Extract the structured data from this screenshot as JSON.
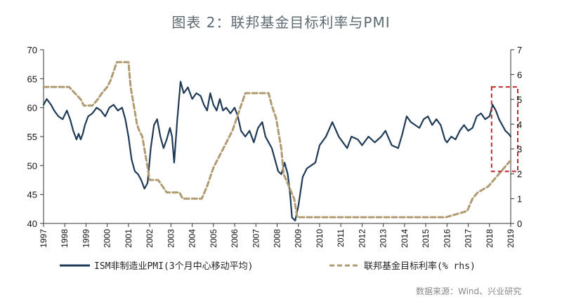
{
  "title": "图表 2：联邦基金目标利率与PMI",
  "source": "数据来源：Wind、兴业研究",
  "colors": {
    "pmi": "#1f3a56",
    "fed": "#b09b70",
    "box": "#c0282d",
    "axis": "#333333"
  },
  "chart_data": {
    "type": "line",
    "title": "图表 2：联邦基金目标利率与PMI",
    "left_axis": {
      "min": 40,
      "max": 70,
      "ticks": [
        40,
        45,
        50,
        55,
        60,
        65,
        70
      ],
      "labels": [
        "40",
        "45",
        "50",
        "55",
        "60",
        "65",
        "70"
      ]
    },
    "right_axis": {
      "min": 0,
      "max": 7,
      "ticks": [
        0,
        1,
        2,
        3,
        4,
        5,
        6,
        7
      ],
      "labels": [
        "0",
        "1",
        "2",
        "3",
        "4",
        "5",
        "6",
        "7"
      ]
    },
    "x_axis": {
      "min": 1997,
      "max": 2019,
      "labels": [
        "1997",
        "1998",
        "1999",
        "2000",
        "2001",
        "2002",
        "2003",
        "2004",
        "2005",
        "2006",
        "2007",
        "2008",
        "2009",
        "2010",
        "2011",
        "2012",
        "2013",
        "2014",
        "2015",
        "2016",
        "2017",
        "2018",
        "2019"
      ]
    },
    "legend": [
      "ISM非制造业PMI(3个月中心移动平均)",
      "联邦基金目标利率(% rhs)"
    ],
    "legend_position": "bottom",
    "series": [
      {
        "name": "ISM非制造业PMI(3个月中心移动平均)",
        "axis": "left",
        "style": "solid",
        "x": [
          1997.0,
          1997.15,
          1997.35,
          1997.5,
          1997.7,
          1997.9,
          1998.1,
          1998.25,
          1998.4,
          1998.55,
          1998.65,
          1998.75,
          1998.85,
          1998.95,
          1999.1,
          1999.3,
          1999.5,
          1999.7,
          1999.9,
          2000.1,
          2000.3,
          2000.5,
          2000.7,
          2000.85,
          2001.0,
          2001.15,
          2001.3,
          2001.45,
          2001.6,
          2001.75,
          2001.9,
          2002.05,
          2002.2,
          2002.35,
          2002.5,
          2002.65,
          2002.8,
          2002.95,
          2003.05,
          2003.15,
          2003.3,
          2003.45,
          2003.6,
          2003.8,
          2004.0,
          2004.2,
          2004.4,
          2004.55,
          2004.7,
          2004.85,
          2005.0,
          2005.15,
          2005.3,
          2005.45,
          2005.6,
          2005.8,
          2006.0,
          2006.15,
          2006.3,
          2006.5,
          2006.7,
          2006.9,
          2007.1,
          2007.3,
          2007.45,
          2007.6,
          2007.75,
          2007.9,
          2008.05,
          2008.2,
          2008.35,
          2008.5,
          2008.6,
          2008.7,
          2008.85,
          2009.0,
          2009.2,
          2009.4,
          2009.6,
          2009.8,
          2010.0,
          2010.3,
          2010.6,
          2010.9,
          2011.1,
          2011.3,
          2011.5,
          2011.8,
          2012.0,
          2012.3,
          2012.6,
          2012.9,
          2013.1,
          2013.4,
          2013.7,
          2013.9,
          2014.1,
          2014.3,
          2014.5,
          2014.7,
          2014.9,
          2015.1,
          2015.3,
          2015.5,
          2015.7,
          2015.9,
          2016.0,
          2016.2,
          2016.4,
          2016.6,
          2016.8,
          2017.0,
          2017.2,
          2017.4,
          2017.6,
          2017.8,
          2018.0,
          2018.15,
          2018.3,
          2018.45,
          2018.6,
          2018.75,
          2018.9,
          2019.0
        ],
        "values": [
          60.5,
          61.5,
          60.5,
          59.5,
          58.5,
          58.0,
          59.5,
          58.0,
          56.0,
          54.5,
          55.5,
          54.5,
          55.5,
          57.0,
          58.5,
          59.0,
          60.0,
          59.5,
          58.5,
          60.0,
          60.5,
          59.5,
          60.0,
          58.0,
          55.0,
          51.0,
          49.0,
          48.5,
          47.5,
          46.0,
          47.0,
          53.0,
          57.0,
          58.0,
          55.0,
          53.0,
          54.5,
          56.5,
          55.0,
          50.5,
          58.0,
          64.5,
          62.5,
          63.5,
          61.5,
          62.5,
          62.0,
          60.5,
          59.5,
          62.5,
          60.5,
          59.5,
          61.5,
          59.5,
          60.0,
          59.0,
          60.0,
          58.5,
          56.0,
          55.0,
          56.0,
          54.0,
          56.5,
          57.5,
          55.0,
          54.0,
          53.0,
          51.0,
          49.0,
          48.5,
          50.5,
          48.5,
          45.5,
          41.0,
          40.5,
          43.0,
          48.0,
          49.5,
          50.0,
          50.5,
          53.5,
          55.0,
          57.5,
          55.0,
          54.0,
          53.0,
          55.0,
          54.5,
          53.5,
          55.0,
          54.0,
          55.0,
          56.0,
          53.5,
          53.0,
          55.5,
          58.5,
          57.5,
          57.0,
          56.5,
          58.0,
          58.5,
          57.0,
          58.0,
          57.0,
          54.5,
          54.0,
          55.0,
          54.5,
          56.0,
          57.0,
          56.0,
          56.5,
          58.5,
          59.0,
          58.0,
          58.5,
          60.5,
          59.5,
          58.0,
          57.0,
          56.0,
          55.5,
          55.0
        ]
      },
      {
        "name": "联邦基金目标利率(% rhs)",
        "axis": "right",
        "style": "dashed",
        "x": [
          1997.0,
          1997.9,
          1998.2,
          1998.75,
          1998.9,
          1999.3,
          1999.55,
          1999.75,
          2000.0,
          2000.15,
          2000.45,
          2001.0,
          2001.1,
          2001.2,
          2001.3,
          2001.4,
          2001.5,
          2001.65,
          2001.85,
          2002.0,
          2002.4,
          2002.8,
          2003.4,
          2003.55,
          2004.45,
          2004.7,
          2005.0,
          2005.3,
          2005.6,
          2005.9,
          2006.2,
          2006.5,
          2007.6,
          2007.75,
          2007.95,
          2008.1,
          2008.2,
          2008.3,
          2008.8,
          2008.95,
          2015.95,
          2016.95,
          2017.2,
          2017.45,
          2017.95,
          2018.2,
          2018.45,
          2018.7,
          2018.95,
          2019.0
        ],
        "values": [
          5.5,
          5.5,
          5.5,
          5.0,
          4.75,
          4.75,
          5.0,
          5.25,
          5.5,
          5.75,
          6.5,
          6.5,
          5.5,
          5.0,
          4.5,
          4.0,
          3.75,
          3.5,
          2.5,
          1.75,
          1.75,
          1.25,
          1.25,
          1.0,
          1.0,
          1.5,
          2.25,
          2.75,
          3.25,
          3.75,
          4.5,
          5.25,
          5.25,
          4.75,
          4.25,
          3.5,
          3.0,
          2.0,
          1.0,
          0.25,
          0.25,
          0.5,
          1.0,
          1.25,
          1.5,
          1.75,
          2.0,
          2.25,
          2.5,
          2.5
        ]
      }
    ],
    "annotation": {
      "type": "highlight-box",
      "from": 2018.1,
      "to": 2019.0,
      "right_axis_from": 2.1,
      "right_axis_to": 5.5
    }
  }
}
